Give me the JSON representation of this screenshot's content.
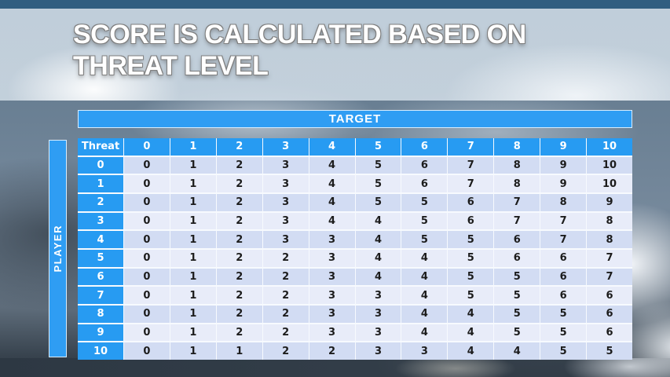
{
  "slide": {
    "title_line1": "SCORE IS CALCULATED BASED ON",
    "title_line2": "THREAT LEVEL"
  },
  "chart_data": {
    "type": "table",
    "title": "Score is calculated based on threat level",
    "x_axis": "TARGET",
    "y_axis": "PLAYER",
    "corner": "Threat",
    "columns": [
      "0",
      "1",
      "2",
      "3",
      "4",
      "5",
      "6",
      "7",
      "8",
      "9",
      "10"
    ],
    "rows": [
      {
        "threat": "0",
        "values": [
          0,
          1,
          2,
          3,
          4,
          5,
          6,
          7,
          8,
          9,
          10
        ]
      },
      {
        "threat": "1",
        "values": [
          0,
          1,
          2,
          3,
          4,
          5,
          6,
          7,
          8,
          9,
          10
        ]
      },
      {
        "threat": "2",
        "values": [
          0,
          1,
          2,
          3,
          4,
          5,
          5,
          6,
          7,
          8,
          9
        ]
      },
      {
        "threat": "3",
        "values": [
          0,
          1,
          2,
          3,
          4,
          4,
          5,
          6,
          7,
          7,
          8
        ]
      },
      {
        "threat": "4",
        "values": [
          0,
          1,
          2,
          3,
          3,
          4,
          5,
          5,
          6,
          7,
          8
        ]
      },
      {
        "threat": "5",
        "values": [
          0,
          1,
          2,
          2,
          3,
          4,
          4,
          5,
          6,
          6,
          7
        ]
      },
      {
        "threat": "6",
        "values": [
          0,
          1,
          2,
          2,
          3,
          4,
          4,
          5,
          5,
          6,
          7
        ]
      },
      {
        "threat": "7",
        "values": [
          0,
          1,
          2,
          2,
          3,
          3,
          4,
          5,
          5,
          6,
          6
        ]
      },
      {
        "threat": "8",
        "values": [
          0,
          1,
          2,
          2,
          3,
          3,
          4,
          4,
          5,
          5,
          6
        ]
      },
      {
        "threat": "9",
        "values": [
          0,
          1,
          2,
          2,
          3,
          3,
          4,
          4,
          5,
          5,
          6
        ]
      },
      {
        "threat": "10",
        "values": [
          0,
          1,
          1,
          2,
          2,
          3,
          3,
          4,
          4,
          5,
          5
        ]
      }
    ]
  },
  "colors": {
    "accent_blue": "#2f9df3",
    "header_blue": "#279bf2",
    "row_even": "#d2dcf3",
    "row_odd": "#e8ecf9",
    "top_bar": "#315e80",
    "cell_text": "#1c1c1c",
    "header_text": "#ffffff"
  }
}
